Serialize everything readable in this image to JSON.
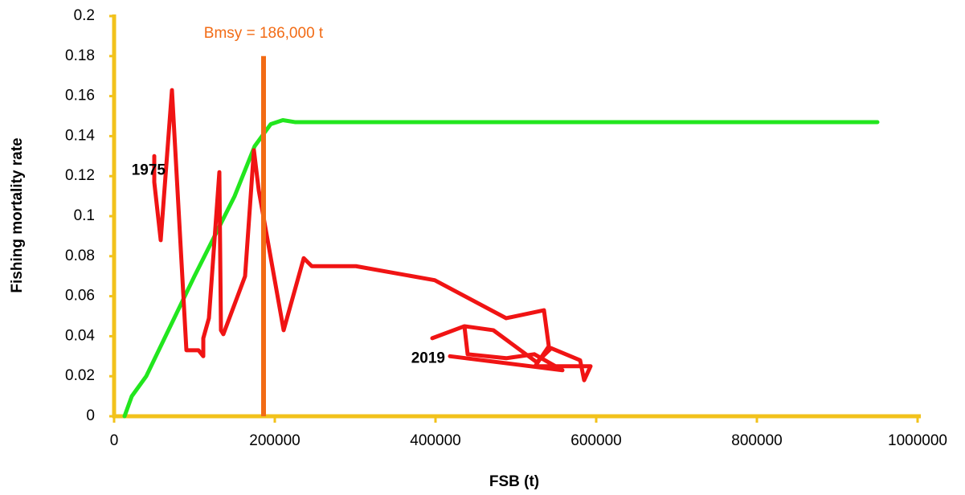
{
  "chart_data": {
    "type": "line",
    "xlabel": "FSB (t)",
    "ylabel": "Fishing mortality rate",
    "xlim": [
      0,
      1000000
    ],
    "xticks": [
      0,
      200000,
      400000,
      600000,
      800000,
      1000000
    ],
    "ylim": [
      0,
      0.2
    ],
    "yticks": [
      0,
      0.02,
      0.04,
      0.06,
      0.08,
      0.1,
      0.12,
      0.14,
      0.16,
      0.18,
      0.2
    ],
    "grid": false,
    "axis_color": "#f2c21b",
    "series": [
      {
        "color": "#22e61e",
        "x": [
          13000,
          22000,
          40000,
          100000,
          150000,
          175000,
          195000,
          210000,
          225000,
          950000
        ],
        "values": [
          0,
          0.01,
          0.02,
          0.07,
          0.11,
          0.135,
          0.146,
          0.148,
          0.147,
          0.147
        ]
      },
      {
        "color": "#f01414",
        "x": [
          50000,
          50000,
          58000,
          72000,
          90000,
          105000,
          111000,
          111000,
          118000,
          131000,
          133000,
          136000,
          163000,
          174000,
          180000,
          211000,
          236000,
          246000,
          301000,
          399000,
          488000,
          535000,
          541000,
          524000,
          593000,
          585000,
          580000,
          544000,
          526000,
          472000,
          436000,
          396000,
          436000,
          440000,
          488000,
          523000,
          558000,
          418000
        ],
        "values": [
          0.13,
          0.117,
          0.088,
          0.163,
          0.033,
          0.033,
          0.03,
          0.039,
          0.049,
          0.122,
          0.043,
          0.041,
          0.07,
          0.133,
          0.113,
          0.043,
          0.079,
          0.075,
          0.075,
          0.068,
          0.049,
          0.053,
          0.035,
          0.025,
          0.025,
          0.018,
          0.028,
          0.034,
          0.027,
          0.043,
          0.045,
          0.039,
          0.045,
          0.031,
          0.029,
          0.031,
          0.023,
          0.03
        ]
      }
    ],
    "reference_line": {
      "text": "Bmsy = 186,000 t",
      "x": 186000,
      "ymax": 0.18,
      "color": "#f26b15"
    },
    "endpoint_labels": {
      "start": "1975",
      "end": "2019"
    }
  }
}
